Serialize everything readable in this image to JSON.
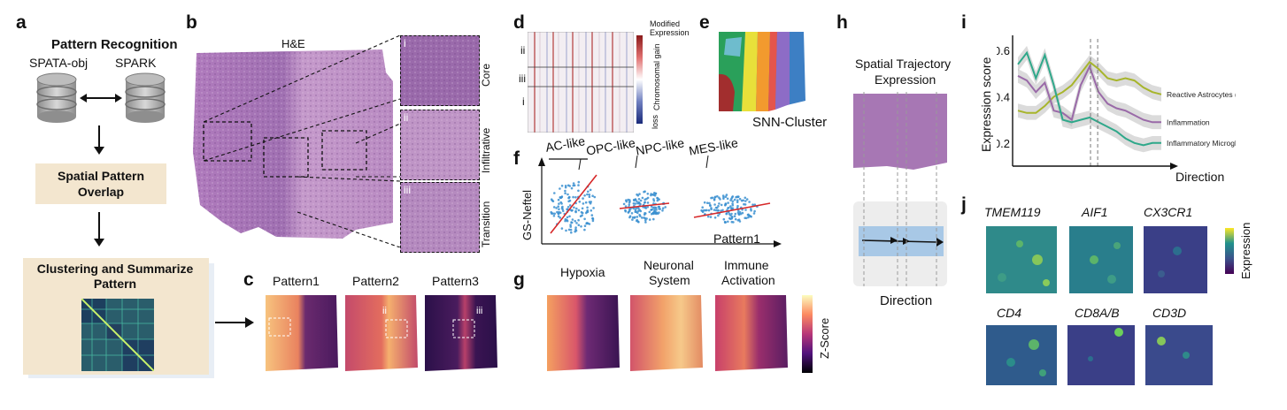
{
  "panel_letters": [
    "a",
    "b",
    "c",
    "d",
    "e",
    "f",
    "g",
    "h",
    "i",
    "j"
  ],
  "a": {
    "title": "Pattern Recognition",
    "db_left": "SPATA-obj",
    "db_right": "SPARK",
    "step2": "Spatial Pattern Overlap",
    "step3": "Clustering and Summarize Pattern"
  },
  "b": {
    "title": "H&E",
    "zooms": [
      {
        "roman": "i",
        "label": "Core"
      },
      {
        "roman": "ii",
        "label": "Infiltrative"
      },
      {
        "roman": "iii",
        "label": "Transition"
      }
    ]
  },
  "c": {
    "titles": [
      "Pattern1",
      "Pattern2",
      "Pattern3"
    ],
    "romans": [
      "ii",
      "iii"
    ]
  },
  "d": {
    "legend_top": "Modified Expression",
    "legend_gain": "Chromosomal gain",
    "legend_loss": "loss",
    "rows": [
      "ii",
      "iii",
      "i"
    ]
  },
  "e": {
    "label": "SNN-Cluster"
  },
  "f": {
    "groups": [
      "AC-like",
      "OPC-like",
      "NPC-like",
      "MES-like"
    ],
    "ylabel": "GS-Neftel",
    "xlabel": "Pattern1"
  },
  "g": {
    "titles": [
      [
        "Hypoxia"
      ],
      [
        "Neuronal",
        "System"
      ],
      [
        "Immune",
        "Activation"
      ]
    ],
    "colorbar": "Z-Score"
  },
  "h": {
    "title_line1": "Spatial Trajectory",
    "title_line2": "Expression",
    "xlabel": "Direction"
  },
  "i": {
    "ylabel": "Expression score",
    "xlabel": "Direction",
    "yticks": [
      "0.6",
      "0.4",
      "0.2"
    ]
  },
  "j": {
    "genes_row1": [
      "TMEM119",
      "AIF1",
      "CX3CR1"
    ],
    "genes_row2": [
      "CD4",
      "CD8A/B",
      "CD3D"
    ],
    "colorbar": "Expression"
  },
  "colors": {
    "beige": "#f3e6cf",
    "he_purple": "#a777b4",
    "pattern_dark": "#2b1049",
    "pattern_bright": "#f6c98a",
    "line_green": "#a7b52b",
    "line_purple": "#9a6aa8",
    "line_teal": "#2fa88a",
    "scatter_blue": "#3a8fd0",
    "fit_red": "#d62728"
  },
  "chart_data": {
    "type": "line",
    "title": "",
    "xlabel": "Direction",
    "ylabel": "Expression score",
    "ylim": [
      0.1,
      0.65
    ],
    "x": [
      0,
      1,
      2,
      3,
      4,
      5,
      6,
      7,
      8,
      9,
      10,
      11,
      12,
      13,
      14,
      15,
      16
    ],
    "series": [
      {
        "name": "Reactive Astrocytes (TAA)",
        "values": [
          0.34,
          0.33,
          0.33,
          0.36,
          0.4,
          0.42,
          0.45,
          0.5,
          0.55,
          0.52,
          0.48,
          0.47,
          0.48,
          0.47,
          0.44,
          0.42,
          0.41
        ]
      },
      {
        "name": "Inflammation",
        "values": [
          0.49,
          0.47,
          0.42,
          0.46,
          0.34,
          0.33,
          0.3,
          0.45,
          0.53,
          0.42,
          0.37,
          0.35,
          0.34,
          0.32,
          0.3,
          0.29,
          0.29
        ]
      },
      {
        "name": "Inflammatory Microglia",
        "values": [
          0.54,
          0.59,
          0.48,
          0.58,
          0.45,
          0.3,
          0.29,
          0.3,
          0.31,
          0.29,
          0.27,
          0.25,
          0.22,
          0.2,
          0.19,
          0.2,
          0.2
        ]
      }
    ],
    "vlines": [
      8.1,
      8.9
    ],
    "yticks": [
      0.2,
      0.4,
      0.6
    ],
    "grid": false
  }
}
